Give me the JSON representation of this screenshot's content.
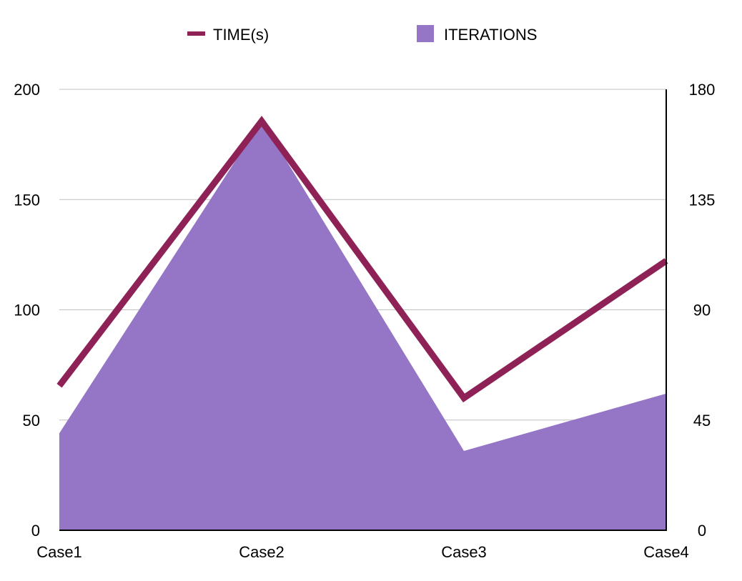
{
  "chart_data": {
    "type": "area",
    "title": "",
    "categories": [
      "Case1",
      "Case2",
      "Case3",
      "Case4"
    ],
    "series": [
      {
        "name": "ITERATIONS",
        "kind": "area",
        "axis": "left",
        "color": "#9575c5",
        "values": [
          44,
          186,
          36,
          62
        ]
      },
      {
        "name": "TIME(s)",
        "kind": "line",
        "axis": "right",
        "color": "#8e2257",
        "values": [
          59,
          167,
          54,
          110
        ]
      }
    ],
    "y_left": {
      "ylim": [
        0,
        200
      ],
      "ticks": [
        "0",
        "50",
        "100",
        "150",
        "200"
      ]
    },
    "y_right": {
      "ylim": [
        0,
        180
      ],
      "ticks": [
        "0",
        "45",
        "90",
        "135",
        "180"
      ]
    },
    "grid": true,
    "legend": {
      "placement": "top-center",
      "items": [
        {
          "label": "TIME(s)",
          "symbol": "line",
          "color": "#8e2257"
        },
        {
          "label": "ITERATIONS",
          "symbol": "square",
          "color": "#9575c5"
        }
      ]
    },
    "colors": {
      "grid": "#c0c0c0",
      "axis": "#000000"
    }
  }
}
